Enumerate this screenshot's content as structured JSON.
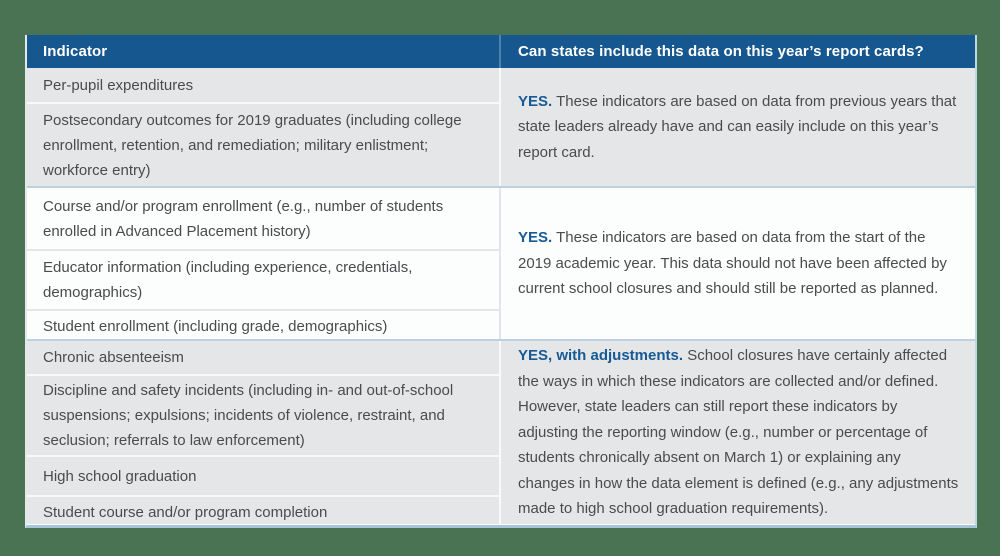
{
  "colors": {
    "page_background": "#4A7354",
    "header_background": "#17578F",
    "header_text": "#FFFFFF",
    "row_gray": "#E5E6E7",
    "row_white": "#FCFDFD",
    "accent_blue": "#175A96",
    "body_text": "#4B4B4D",
    "section_divider": "#BDD0DF"
  },
  "chart_data": {
    "type": "table",
    "columns": [
      "Indicator",
      "Can states include this data on this year’s report cards?"
    ],
    "sections": [
      {
        "indicators": [
          "Per-pupil expenditures",
          "Postsecondary outcomes for 2019 graduates (including college enrollment, retention, and remediation; military enlistment; workforce entry)"
        ],
        "answer_lead": "YES.",
        "answer_text": "These indicators are based on data from previous years that state leaders already have and can easily include on this year’s report card."
      },
      {
        "indicators": [
          "Course and/or program enrollment (e.g., number of students enrolled in Advanced Placement history)",
          "Educator information (including experience, credentials, demographics)",
          "Student enrollment (including grade, demographics)"
        ],
        "answer_lead": "YES.",
        "answer_text": "These indicators are based on data from the start of the 2019 academic year. This data should not have been affected by current school closures and should still be reported as planned."
      },
      {
        "indicators": [
          "Chronic absenteeism",
          "Discipline and safety incidents (including in- and out-of-school suspensions; expulsions; incidents of violence, restraint, and seclusion; referrals to law enforcement)",
          "High school graduation",
          "Student course and/or program completion"
        ],
        "answer_lead": "YES, with adjustments.",
        "answer_text": "School closures have certainly affected the ways in which these indicators are collected and/or defined. However, state leaders can still report these indicators by adjusting the reporting window (e.g., number or percentage of students chronically absent on March 1) or explaining any changes in how the data element is defined (e.g., any adjustments made to high school graduation requirements)."
      }
    ]
  }
}
